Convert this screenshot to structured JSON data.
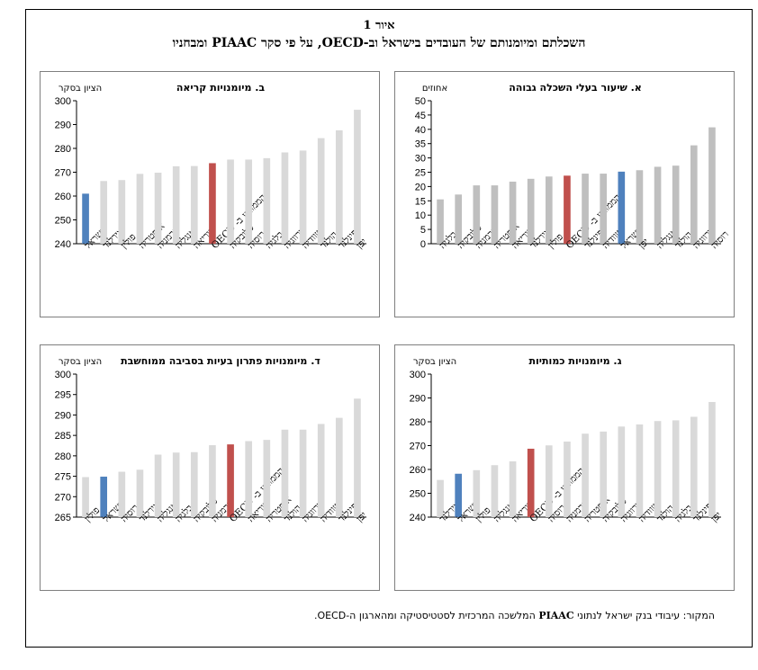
{
  "figure": {
    "number": "איור 1",
    "title": "השכלתם ומיומנותם של העובדים בישראל וב-OECD, על פי סקר PIAAC ומבחניו",
    "source_label": "המקור: עיבודי בנק ישראל לנתוני",
    "source_bold": "PIAAC",
    "source_rest": "המלשכה המרכזית לסטטיסטיקה ומהארגון ה-OECD."
  },
  "colors": {
    "bar": "#d9d9d9",
    "bar_dark": "#bfbfbf",
    "israel": "#4f81bd",
    "oecd": "#c0504d"
  },
  "chart_data": [
    {
      "id": "a",
      "type": "bar",
      "title": "א. שיעור בעלי השכלה גבוהה",
      "ylabel": "אחוזים",
      "ylim": [
        0,
        50
      ],
      "yticks": [
        0,
        5,
        10,
        15,
        20,
        25,
        30,
        35,
        40,
        45,
        50
      ],
      "grid": false,
      "categories": [
        "בלגיה",
        "סלובקיה",
        "גרמניה",
        "אוסטריה",
        "קוריאה",
        "אירלנד",
        "פולין",
        "הממוצע ב- OECD",
        "פינלנד",
        "שוודיה",
        "ישראל",
        "יפן",
        "אנגליה",
        "הולנד",
        "נורווגיה",
        "רוסיה"
      ],
      "values": [
        15.5,
        17.2,
        20.4,
        20.4,
        21.7,
        22.7,
        23.5,
        23.8,
        24.5,
        24.5,
        25.2,
        25.7,
        26.9,
        27.3,
        34.4,
        40.7
      ],
      "highlight": {
        "ישראל": "israel",
        "הממוצע ב- OECD": "oecd"
      }
    },
    {
      "id": "b",
      "type": "bar",
      "title": "ב. מיומנויות קריאה",
      "ylabel": "הציון בסקר",
      "ylim": [
        240,
        300
      ],
      "yticks": [
        240,
        250,
        260,
        270,
        280,
        290,
        300
      ],
      "grid": false,
      "categories": [
        "ישראל",
        "אירלנד",
        "פולין",
        "אוסטריה",
        "גרמניה",
        "אנגליה",
        "קוריאה",
        "הממוצע ב- OECD",
        "סלובקיה",
        "רוסיה",
        "בלגיה",
        "נורווגיה",
        "שוודיה",
        "הולנד",
        "פינלנד",
        "יפן"
      ],
      "values": [
        261,
        266.3,
        266.7,
        269.3,
        269.8,
        272.5,
        272.6,
        273.8,
        275.3,
        275.3,
        275.9,
        278.3,
        279.1,
        284.3,
        287.6,
        296.2
      ],
      "highlight": {
        "ישראל": "israel",
        "הממוצע ב- OECD": "oecd"
      }
    },
    {
      "id": "c",
      "type": "bar",
      "title": "ג. מיומנויות כמותיות",
      "ylabel": "הציון בסקר",
      "ylim": [
        240,
        300
      ],
      "yticks": [
        240,
        250,
        260,
        270,
        280,
        290,
        300
      ],
      "grid": false,
      "categories": [
        "אירלנד",
        "ישראל",
        "פולין",
        "אנגליה",
        "קוריאה",
        "הממוצע ב- OECD",
        "רוסיה",
        "גרמניה",
        "אוסטריה",
        "סלובקיה",
        "נורווגיה",
        "שוודיה",
        "הולנד",
        "בלגיה",
        "פינלנד",
        "יפן"
      ],
      "values": [
        255.6,
        258.2,
        259.7,
        261.8,
        263.4,
        268.7,
        270.1,
        271.7,
        275.0,
        275.9,
        278.0,
        278.9,
        280.3,
        280.6,
        282.1,
        288.3
      ],
      "highlight": {
        "ישראל": "israel",
        "הממוצע ב- OECD": "oecd"
      }
    },
    {
      "id": "d",
      "type": "bar",
      "title": "ד. מיומנויות פתרון בעיות בסביבה ממוחשבת",
      "ylabel": "הציון בסקר",
      "ylim": [
        265,
        300
      ],
      "yticks": [
        265,
        270,
        275,
        280,
        285,
        290,
        295,
        300
      ],
      "grid": false,
      "categories": [
        "פולין",
        "ישראל",
        "רוסיה",
        "אירלנד",
        "אנגליה",
        "בלגיה",
        "סלובקיה",
        "גרמניה",
        "הממוצע ב- OECD",
        "קוריאה",
        "אוסטריה",
        "הולנד",
        "נורווגיה",
        "שוודיה",
        "פינלנד",
        "יפן"
      ],
      "values": [
        274.8,
        274.9,
        276.1,
        276.6,
        280.3,
        280.8,
        280.9,
        282.6,
        282.8,
        283.6,
        283.9,
        286.4,
        286.4,
        287.8,
        289.3,
        294.0
      ],
      "highlight": {
        "ישראל": "israel",
        "הממוצע ב- OECD": "oecd"
      }
    }
  ]
}
